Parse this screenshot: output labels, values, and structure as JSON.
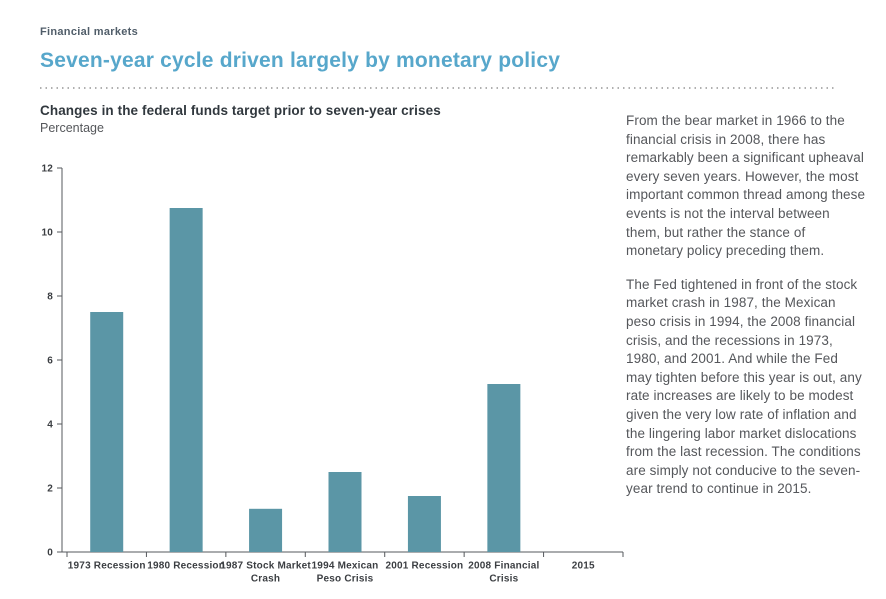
{
  "header": {
    "eyebrow": "Financial markets",
    "title": "Seven-year cycle driven largely by monetary policy"
  },
  "figure": {
    "heading": "Changes in the federal funds target prior to seven-year crises",
    "unit": "Percentage"
  },
  "article": {
    "paragraphs": [
      "From the bear market in 1966 to the financial crisis in 2008, there has remarkably been a significant upheaval every seven years. However, the most important common thread among these events is not the interval between them, but rather the stance of monetary policy preceding them.",
      "The Fed tightened in front of the stock market crash in 1987, the Mexican peso crisis in 1994, the 2008 financial crisis, and the recessions in 1973, 1980, and 2001. And while the Fed may tighten before this year is out, any rate increases are likely to be modest given the very low rate of inflation and the lingering labor market dislocations from the last recession. The conditions are simply not conducive to the seven-year trend to continue in 2015."
    ]
  },
  "colors": {
    "accent_title": "#57a7cb",
    "eyebrow_text": "#505d69",
    "heading_text": "#31383e",
    "body_text": "#55575b",
    "bar": "#5b96a6",
    "axis": "#55585c",
    "divider_dots": "#b0b0b0"
  },
  "chart_data": {
    "type": "bar",
    "title": "Changes in the federal funds target prior to seven-year crises",
    "xlabel": "",
    "ylabel": "Percentage",
    "categories": [
      "1973 Recession",
      "1980 Recession",
      "1987 Stock Market Crash",
      "1994 Mexican Peso Crisis",
      "2001 Recession",
      "2008 Financial Crisis",
      "2015"
    ],
    "category_lines": [
      [
        "1973 Recession"
      ],
      [
        "1980 Recession"
      ],
      [
        "1987 Stock Market",
        "Crash"
      ],
      [
        "1994 Mexican",
        "Peso Crisis"
      ],
      [
        "2001 Recession"
      ],
      [
        "2008 Financial",
        "Crisis"
      ],
      [
        "2015"
      ]
    ],
    "values": [
      7.5,
      10.75,
      1.35,
      2.5,
      1.75,
      5.25,
      0
    ],
    "y_ticks": [
      0,
      2,
      4,
      6,
      8,
      10,
      12
    ],
    "ylim": [
      0,
      12
    ],
    "grid": false,
    "legend": null,
    "bar_color": "#5b96a6"
  }
}
